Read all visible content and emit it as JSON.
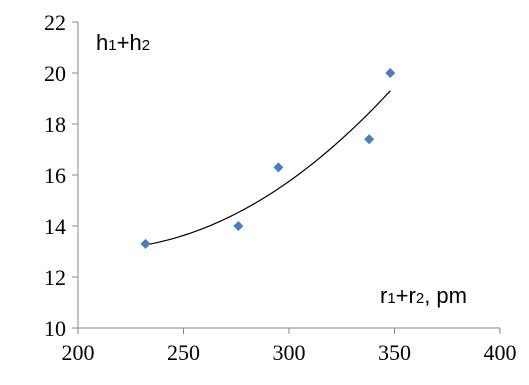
{
  "chart_data": {
    "type": "scatter",
    "title": "",
    "ylabel": {
      "h": "h",
      "s1": "1",
      "plus": "+",
      "h2": "h",
      "s2": "2"
    },
    "xlabel": {
      "r": "r",
      "s1": "1",
      "plus": "+",
      "r2": "r",
      "s2": "2",
      "unit": ", pm"
    },
    "xlim": [
      200,
      400
    ],
    "ylim": [
      10,
      22
    ],
    "xticks": [
      200,
      250,
      300,
      350,
      400
    ],
    "yticks": [
      10,
      12,
      14,
      16,
      18,
      20,
      22
    ],
    "grid": false,
    "series": [
      {
        "points": [
          {
            "x": 232,
            "y": 13.3
          },
          {
            "x": 276,
            "y": 14.0
          },
          {
            "x": 295,
            "y": 16.3
          },
          {
            "x": 338,
            "y": 17.4
          },
          {
            "x": 348,
            "y": 20.0
          }
        ],
        "color": "#4a7ebb"
      }
    ],
    "trendline": {
      "type": "polynomial",
      "color": "#000000",
      "x_range": [
        232,
        348
      ]
    }
  }
}
